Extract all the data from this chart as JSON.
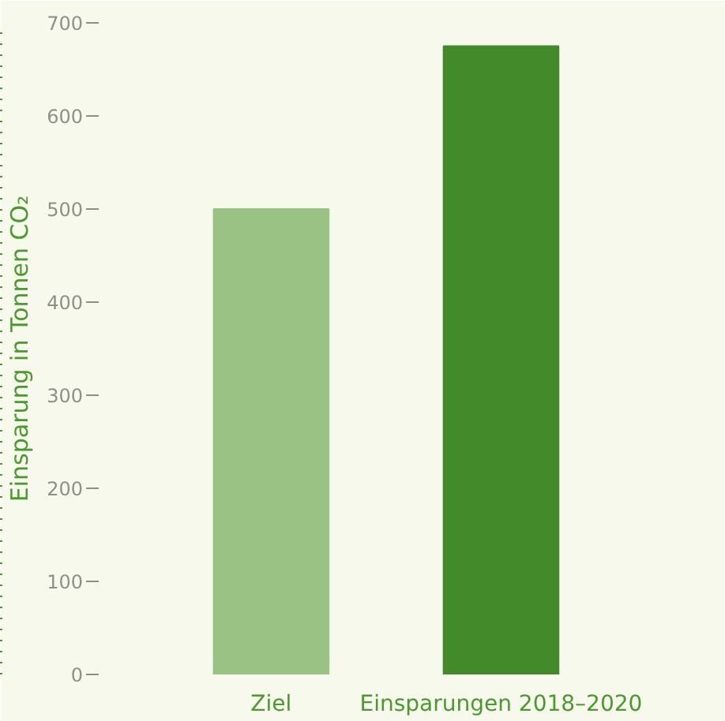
{
  "chart_data": {
    "type": "bar",
    "ylabel": "Einsparung in Tonnen CO₂",
    "categories": [
      "Ziel",
      "Einsparungen 2018–2020"
    ],
    "values": [
      500,
      675
    ],
    "colors": [
      "#99c284",
      "#438a2a"
    ],
    "ylim": [
      0,
      700
    ],
    "yticks": [
      0,
      100,
      200,
      300,
      400,
      500,
      600,
      700
    ],
    "grid": false
  }
}
